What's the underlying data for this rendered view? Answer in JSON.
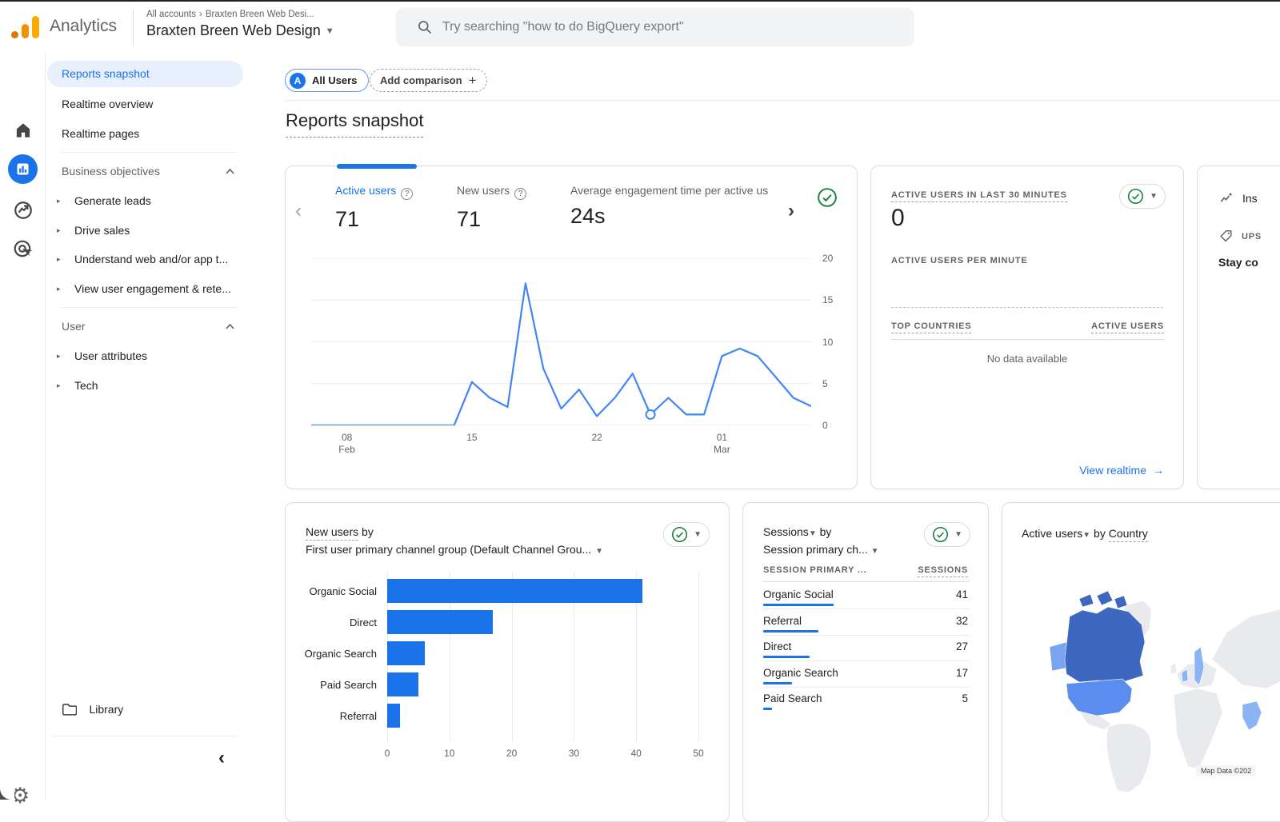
{
  "colors": {
    "accent_blue": "#1a73e8",
    "chart_line": "#4285f4",
    "bar_fill": "#1a73e8",
    "active_item_bg": "#e8f0fe",
    "success_green": "#188038",
    "logo_orange": "#f9ab00"
  },
  "header": {
    "product": "Analytics",
    "breadcrumb_root": "All accounts",
    "breadcrumb_leaf": "Braxten Breen Web Desi...",
    "account_name": "Braxten Breen Web Design",
    "search_placeholder": "Try searching \"how to do BigQuery export\""
  },
  "nav_rail": {
    "items": [
      "home-icon",
      "reports-icon",
      "explore-icon",
      "advertising-icon"
    ],
    "active_item": "reports-icon",
    "settings": "gear-icon"
  },
  "sidebar": {
    "top_items": [
      {
        "label": "Reports snapshot",
        "active": true
      },
      {
        "label": "Realtime overview",
        "active": false
      },
      {
        "label": "Realtime pages",
        "active": false
      }
    ],
    "sections": [
      {
        "title": "Business objectives",
        "items": [
          "Generate leads",
          "Drive sales",
          "Understand web and/or app t...",
          "View user engagement & rete..."
        ]
      },
      {
        "title": "User",
        "items": [
          "User attributes",
          "Tech"
        ]
      }
    ],
    "library_label": "Library"
  },
  "toolbar": {
    "all_users_chip": "All Users",
    "all_users_avatar": "A",
    "add_comparison_label": "Add comparison"
  },
  "page_title": "Reports snapshot",
  "overview": {
    "metrics": [
      {
        "label": "Active users",
        "value": "71"
      },
      {
        "label": "New users",
        "value": "71"
      },
      {
        "label": "Average engagement time per active us",
        "value": "24s"
      }
    ]
  },
  "realtime": {
    "title": "ACTIVE USERS IN LAST 30 MINUTES",
    "value": "0",
    "per_minute_label": "ACTIVE USERS PER MINUTE",
    "top_countries_label": "TOP COUNTRIES",
    "active_users_label": "ACTIVE USERS",
    "no_data": "No data available",
    "view_realtime_label": "View realtime",
    "arrow": "→"
  },
  "insights": {
    "title_truncated": "Ins",
    "tag_truncated": "UPS",
    "body_truncated": "Stay co"
  },
  "chart_data": [
    {
      "id": "active-users-trend",
      "type": "line",
      "title": "Active users",
      "series": [
        {
          "name": "Active users",
          "values": [
            0,
            0,
            0,
            0,
            0,
            0,
            0,
            0,
            0,
            5.2,
            3.3,
            2.2,
            17,
            6.8,
            2,
            4.3,
            1.1,
            3.3,
            6.2,
            1.3,
            3.3,
            1.3,
            1.3,
            8.3,
            9.2,
            8.3,
            5.8,
            3.3,
            2.3
          ]
        }
      ],
      "x_start": "Feb 6",
      "x_end": "Mar 6",
      "x_ticks": [
        {
          "index": 2,
          "label": "08",
          "sublabel": "Feb"
        },
        {
          "index": 9,
          "label": "15",
          "sublabel": ""
        },
        {
          "index": 16,
          "label": "22",
          "sublabel": ""
        },
        {
          "index": 23,
          "label": "01",
          "sublabel": "Mar"
        }
      ],
      "ylim": [
        0,
        20
      ],
      "y_ticks": [
        0,
        5,
        10,
        15,
        20
      ],
      "y_axis_position": "right",
      "grid": true,
      "marker_index": 19,
      "line_color": "#4285f4"
    },
    {
      "id": "new-users-by-channel",
      "type": "bar",
      "orientation": "horizontal",
      "title_metric": "New users",
      "title_by": " by",
      "title_dimension": "First user primary channel group (Default Channel Grou...",
      "categories": [
        "Organic Social",
        "Direct",
        "Organic Search",
        "Paid Search",
        "Referral"
      ],
      "values": [
        41,
        17,
        6,
        5,
        2
      ],
      "xlim": [
        0,
        50
      ],
      "x_ticks": [
        0,
        10,
        20,
        30,
        40,
        50
      ],
      "grid": true,
      "bar_color": "#1a73e8"
    },
    {
      "id": "sessions-by-channel",
      "type": "table",
      "title_metric": "Sessions",
      "title_by": " by",
      "title_dimension": "Session primary ch...",
      "columns": [
        "SESSION PRIMARY ...",
        "SESSIONS"
      ],
      "rows": [
        [
          "Organic Social",
          41
        ],
        [
          "Referral",
          32
        ],
        [
          "Direct",
          27
        ],
        [
          "Organic Search",
          17
        ],
        [
          "Paid Search",
          5
        ]
      ]
    },
    {
      "id": "active-users-by-country",
      "type": "heatmap",
      "title_metric": "Active users",
      "title_by": " by ",
      "title_dimension": "Country",
      "highlighted_regions": [
        {
          "region": "Canada",
          "level": "highest"
        },
        {
          "region": "United States",
          "level": "high"
        },
        {
          "region": "Alaska (US)",
          "level": "medium"
        },
        {
          "region": "Sweden",
          "level": "low"
        },
        {
          "region": "Denmark",
          "level": "low"
        },
        {
          "region": "India",
          "level": "low"
        }
      ],
      "palette": {
        "highest": "#3e68c0",
        "high": "#5b8df0",
        "medium": "#78a4f2",
        "low": "#8ab4f3",
        "none": "#e8eaed"
      },
      "attribution": "Map Data ©202"
    }
  ]
}
